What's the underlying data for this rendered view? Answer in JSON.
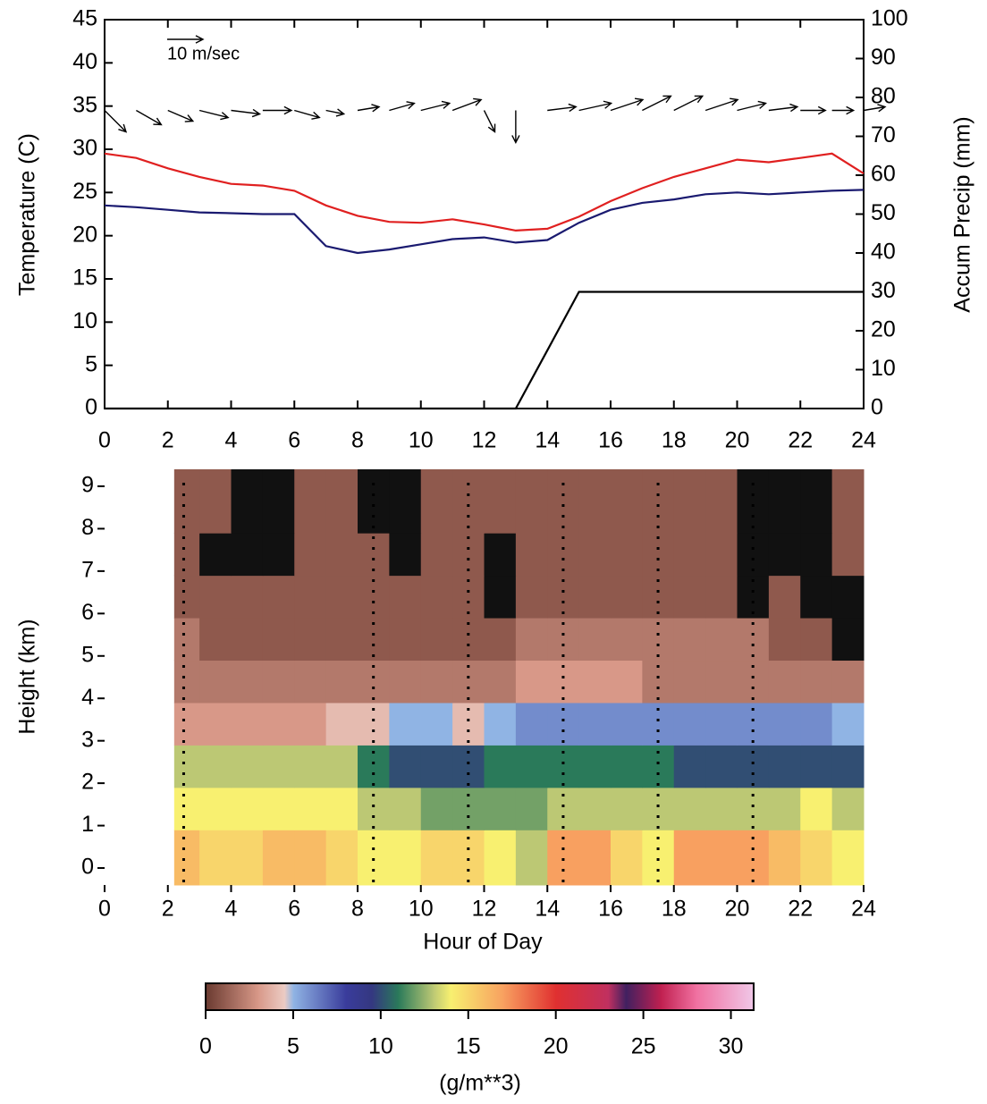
{
  "chart_data": [
    {
      "type": "line",
      "y_label": "Temperature (C)",
      "y2_label": "Accum  Precip (mm)",
      "x": [
        0,
        1,
        2,
        3,
        4,
        5,
        6,
        7,
        8,
        9,
        10,
        11,
        12,
        13,
        14,
        15,
        16,
        17,
        18,
        19,
        20,
        21,
        22,
        23,
        24
      ],
      "xlim": [
        0,
        24
      ],
      "xticks": [
        0,
        2,
        4,
        6,
        8,
        10,
        12,
        14,
        16,
        18,
        20,
        22,
        24
      ],
      "ylim": [
        0,
        45
      ],
      "yticks": [
        0,
        5,
        10,
        15,
        20,
        25,
        30,
        35,
        40,
        45
      ],
      "y2lim": [
        0,
        100
      ],
      "y2ticks": [
        0,
        10,
        20,
        30,
        40,
        50,
        60,
        70,
        80,
        90,
        100
      ],
      "series": [
        {
          "color": "#e02020",
          "values": [
            29.5,
            29,
            27.8,
            26.8,
            26,
            25.8,
            25.2,
            23.5,
            22.3,
            21.6,
            21.5,
            21.9,
            21.3,
            20.6,
            20.8,
            22.2,
            24,
            25.5,
            26.8,
            27.8,
            28.8,
            28.5,
            29,
            29.5,
            27.2
          ]
        },
        {
          "color": "#1a1a70",
          "values": [
            23.5,
            23.3,
            23,
            22.7,
            22.6,
            22.5,
            22.5,
            18.8,
            18,
            18.4,
            19,
            19.6,
            19.8,
            19.2,
            19.5,
            21.5,
            23,
            23.8,
            24.2,
            24.8,
            25,
            24.8,
            25,
            25.2,
            25.3
          ]
        },
        {
          "color": "#000000",
          "axis": "y2",
          "values": [
            0,
            0,
            0,
            0,
            0,
            0,
            0,
            0,
            0,
            0,
            0,
            0,
            0,
            0,
            15,
            30,
            30,
            30,
            30,
            30,
            30,
            30,
            30,
            30,
            30
          ]
        }
      ],
      "wind": {
        "label": "10 m/sec",
        "reference": 10,
        "u": [
          6,
          7,
          7,
          8,
          8,
          8,
          7,
          5,
          6,
          7,
          8,
          8,
          3,
          0,
          8,
          9,
          9,
          8,
          8,
          9,
          8,
          8,
          7,
          6,
          6
        ],
        "v": [
          -6,
          -4,
          -3,
          -2,
          -1,
          0,
          -2,
          -1,
          1,
          2,
          2,
          3,
          -6,
          -9,
          1,
          2,
          3,
          4,
          4,
          3,
          2,
          1,
          0,
          0,
          1
        ]
      }
    },
    {
      "type": "heatmap",
      "x_label": "Hour of Day",
      "y_label": "Height (km)",
      "xlim": [
        0,
        24
      ],
      "xticks": [
        0,
        2,
        4,
        6,
        8,
        10,
        12,
        14,
        16,
        18,
        20,
        22,
        24
      ],
      "ylim": [
        -0.4,
        9.4
      ],
      "yticks": [
        0,
        1,
        2,
        3,
        4,
        5,
        6,
        7,
        8,
        9
      ],
      "x_edges": [
        2.2,
        3,
        4,
        5,
        6,
        7,
        8,
        9,
        10,
        11,
        12,
        13,
        14,
        15,
        16,
        17,
        18,
        19,
        20,
        21,
        22,
        23,
        24
      ],
      "y_edges": [
        -0.4,
        0.9,
        1.9,
        2.9,
        3.9,
        4.9,
        5.9,
        6.9,
        7.9,
        9.4
      ],
      "marker_hours": [
        2.5,
        8.5,
        11.5,
        14.5,
        17.5,
        20.5
      ],
      "values": [
        [
          16,
          15,
          15,
          16,
          16,
          15,
          14,
          14,
          15,
          15,
          14,
          13,
          17,
          17,
          15,
          14,
          17,
          17,
          17,
          16,
          15,
          14
        ],
        [
          14,
          14,
          14,
          14,
          14,
          14,
          13,
          13,
          12,
          12,
          12,
          12,
          13,
          13,
          13,
          13,
          13,
          13,
          13,
          13,
          14,
          13
        ],
        [
          13,
          13,
          13,
          13,
          13,
          13,
          11,
          10,
          10,
          10,
          11,
          11,
          11,
          11,
          11,
          11,
          10,
          10,
          10,
          10,
          10,
          10
        ],
        [
          3,
          3,
          3,
          3,
          3,
          4,
          4,
          5,
          5,
          4,
          5,
          6,
          6,
          6,
          6,
          6,
          6,
          6,
          6,
          6,
          6,
          5
        ],
        [
          2,
          2,
          2,
          2,
          2,
          2,
          2,
          2,
          2,
          2,
          2,
          3,
          3,
          3,
          3,
          2,
          2,
          2,
          2,
          2,
          2,
          2
        ],
        [
          2,
          1,
          1,
          1,
          1,
          1,
          1,
          1,
          1,
          1,
          1,
          2,
          2,
          2,
          2,
          2,
          2,
          2,
          2,
          1,
          1,
          null
        ],
        [
          1,
          1,
          1,
          1,
          1,
          1,
          1,
          1,
          1,
          1,
          null,
          1,
          1,
          1,
          1,
          1,
          1,
          1,
          null,
          1,
          null,
          null
        ],
        [
          1,
          null,
          null,
          null,
          1,
          1,
          1,
          null,
          1,
          1,
          null,
          1,
          1,
          1,
          1,
          1,
          1,
          1,
          null,
          null,
          null,
          1
        ],
        [
          1,
          1,
          null,
          null,
          1,
          1,
          null,
          null,
          1,
          1,
          1,
          1,
          1,
          1,
          1,
          1,
          1,
          1,
          null,
          null,
          null,
          1
        ]
      ],
      "colormap": [
        {
          "value": 0,
          "color": "#6a3a30"
        },
        {
          "value": 3,
          "color": "#d89888"
        },
        {
          "value": 4.5,
          "color": "#ecccc4"
        },
        {
          "value": 5,
          "color": "#90b4e4"
        },
        {
          "value": 8,
          "color": "#3a3c9c"
        },
        {
          "value": 9.5,
          "color": "#343880"
        },
        {
          "value": 11,
          "color": "#2a7a5a"
        },
        {
          "value": 13,
          "color": "#bcc874"
        },
        {
          "value": 14,
          "color": "#f8f070"
        },
        {
          "value": 17,
          "color": "#f8a060"
        },
        {
          "value": 20,
          "color": "#e03030"
        },
        {
          "value": 23,
          "color": "#c03060"
        },
        {
          "value": 24,
          "color": "#402060"
        },
        {
          "value": 26,
          "color": "#c02050"
        },
        {
          "value": 28,
          "color": "#f070a0"
        },
        {
          "value": 31.3,
          "color": "#f0c8e8"
        }
      ],
      "colorbar_label": "(g/m**3)",
      "clim": [
        0,
        31.3
      ],
      "cticks": [
        0,
        5,
        10,
        15,
        20,
        25,
        30
      ]
    }
  ]
}
